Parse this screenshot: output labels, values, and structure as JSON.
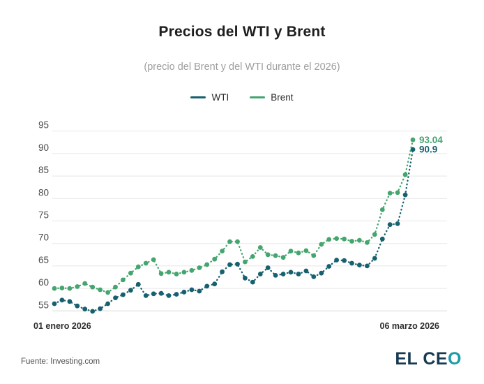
{
  "header": {
    "title": "Precios del WTI y Brent",
    "subtitle": "(precio del Brent y del WTI durante el 2026)"
  },
  "legend": [
    {
      "label": "WTI",
      "color": "#16606f"
    },
    {
      "label": "Brent",
      "color": "#44a56f"
    }
  ],
  "footer": {
    "source": "Fuente: Investing.com",
    "brand_main": "EL CE",
    "brand_accent": "O"
  },
  "chart_data": {
    "type": "line",
    "title": "Precios del WTI y Brent",
    "subtitle": "(precio del Brent y del WTI durante el 2026)",
    "grid": true,
    "legend_position": "top",
    "x_axis": {
      "start_label": "01 enero 2026",
      "end_label": "06 marzo 2026"
    },
    "y_axis": {
      "ticks": [
        55,
        60,
        65,
        70,
        75,
        80,
        85,
        90,
        95
      ],
      "range": [
        55,
        95
      ]
    },
    "series": [
      {
        "name": "WTI",
        "color": "#16606f",
        "end_label": "90.9",
        "values": [
          56.6,
          57.4,
          57.1,
          56.1,
          55.4,
          54.9,
          55.5,
          56.6,
          57.9,
          58.6,
          59.6,
          60.9,
          58.4,
          58.8,
          58.9,
          58.4,
          58.7,
          59.2,
          59.7,
          59.4,
          60.5,
          61.0,
          63.7,
          65.3,
          65.4,
          62.3,
          61.4,
          63.2,
          64.6,
          62.9,
          63.2,
          63.6,
          63.2,
          63.9,
          62.6,
          63.4,
          64.9,
          66.3,
          66.2,
          65.6,
          65.2,
          65.0,
          66.7,
          71.0,
          74.2,
          74.4,
          80.8,
          90.9
        ]
      },
      {
        "name": "Brent",
        "color": "#44a56f",
        "end_label": "93.04",
        "values": [
          60.0,
          60.1,
          60.0,
          60.4,
          61.1,
          60.3,
          59.7,
          59.1,
          60.3,
          61.9,
          63.4,
          64.8,
          65.6,
          66.4,
          63.3,
          63.6,
          63.2,
          63.6,
          64.0,
          64.6,
          65.3,
          66.5,
          68.3,
          70.4,
          70.4,
          65.9,
          67.1,
          69.1,
          67.5,
          67.3,
          66.9,
          68.3,
          67.9,
          68.4,
          67.3,
          69.8,
          70.9,
          71.1,
          71.0,
          70.5,
          70.7,
          70.2,
          72.0,
          77.5,
          81.2,
          81.3,
          85.3,
          93.04
        ]
      }
    ]
  }
}
